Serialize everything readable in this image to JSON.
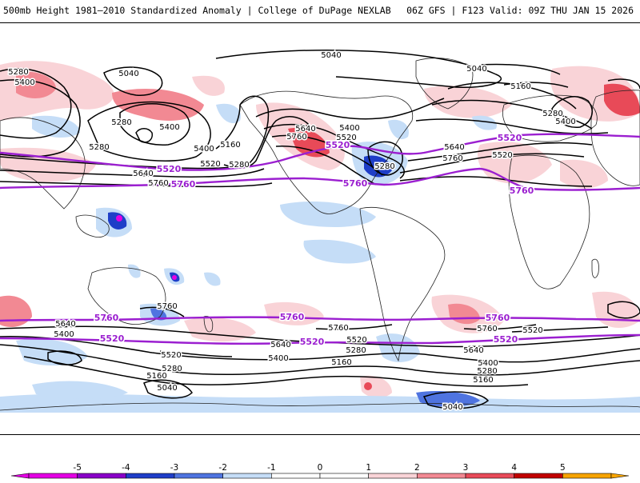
{
  "header": {
    "left_title": "500mb Height 1981–2010 Standardized Anomaly | College of DuPage NEXLAB",
    "right_title": "06Z GFS | F123 Valid: 09Z THU JAN 15 2026"
  },
  "colors": {
    "contour_black": "#000000",
    "contour_purple": "#9b1fd0",
    "neg5": "#e400e4",
    "neg4": "#8a00c8",
    "neg3": "#1f3ec8",
    "neg2": "#4f74e0",
    "neg1": "#c5ddf7",
    "pos1": "#f9d3d7",
    "pos2": "#f28993",
    "pos3": "#e84a58",
    "pos4": "#c10000",
    "pos5": "#f7a400"
  },
  "contour_labels_black": [
    "5040",
    "5160",
    "5280",
    "5400",
    "5520",
    "5640",
    "5760"
  ],
  "contour_labels_purple": [
    "5520",
    "5760"
  ],
  "colorbar": {
    "ticks": [
      "-5",
      "-4",
      "-3",
      "-2",
      "-1",
      "0",
      "1",
      "2",
      "3",
      "4",
      "5"
    ]
  },
  "map_labels": [
    {
      "text": "5280",
      "kind": "black",
      "pos": [
        23,
        89
      ]
    },
    {
      "text": "5400",
      "kind": "black",
      "pos": [
        31,
        102
      ]
    },
    {
      "text": "5040",
      "kind": "black",
      "pos": [
        161,
        91
      ]
    },
    {
      "text": "5280",
      "kind": "black",
      "pos": [
        152,
        152
      ]
    },
    {
      "text": "5400",
      "kind": "black",
      "pos": [
        212,
        158
      ]
    },
    {
      "text": "5280",
      "kind": "black",
      "pos": [
        124,
        183
      ]
    },
    {
      "text": "5400",
      "kind": "black",
      "pos": [
        255,
        185
      ]
    },
    {
      "text": "5160",
      "kind": "black",
      "pos": [
        288,
        180
      ]
    },
    {
      "text": "5520",
      "kind": "black",
      "pos": [
        263,
        204
      ]
    },
    {
      "text": "5280",
      "kind": "black",
      "pos": [
        299,
        205
      ]
    },
    {
      "text": "5640",
      "kind": "black",
      "pos": [
        179,
        216
      ]
    },
    {
      "text": "5760",
      "kind": "black",
      "pos": [
        198,
        228
      ]
    },
    {
      "text": "5040",
      "kind": "black",
      "pos": [
        414,
        68
      ]
    },
    {
      "text": "5040",
      "kind": "black",
      "pos": [
        596,
        85
      ]
    },
    {
      "text": "5160",
      "kind": "black",
      "pos": [
        651,
        107
      ]
    },
    {
      "text": "5280",
      "kind": "black",
      "pos": [
        691,
        141
      ]
    },
    {
      "text": "5400",
      "kind": "black",
      "pos": [
        707,
        151
      ]
    },
    {
      "text": "5400",
      "kind": "black",
      "pos": [
        437,
        159
      ]
    },
    {
      "text": "5520",
      "kind": "black",
      "pos": [
        433,
        171
      ]
    },
    {
      "text": "5640",
      "kind": "black",
      "pos": [
        382,
        160
      ]
    },
    {
      "text": "5760",
      "kind": "black",
      "pos": [
        371,
        170
      ]
    },
    {
      "text": "5280",
      "kind": "black",
      "pos": [
        481,
        207
      ]
    },
    {
      "text": "5640",
      "kind": "black",
      "pos": [
        568,
        183
      ]
    },
    {
      "text": "5520",
      "kind": "black",
      "pos": [
        628,
        193
      ]
    },
    {
      "text": "5760",
      "kind": "black",
      "pos": [
        566,
        197
      ]
    },
    {
      "text": "5760",
      "kind": "black",
      "pos": [
        209,
        382
      ]
    },
    {
      "text": "5640",
      "kind": "black",
      "pos": [
        82,
        404
      ]
    },
    {
      "text": "5400",
      "kind": "black",
      "pos": [
        80,
        417
      ]
    },
    {
      "text": "5520",
      "kind": "black",
      "pos": [
        214,
        443
      ]
    },
    {
      "text": "5280",
      "kind": "black",
      "pos": [
        215,
        460
      ]
    },
    {
      "text": "5160",
      "kind": "black",
      "pos": [
        196,
        469
      ]
    },
    {
      "text": "5040",
      "kind": "black",
      "pos": [
        209,
        484
      ]
    },
    {
      "text": "5760",
      "kind": "black",
      "pos": [
        423,
        409
      ]
    },
    {
      "text": "5640",
      "kind": "black",
      "pos": [
        351,
        430
      ]
    },
    {
      "text": "5400",
      "kind": "black",
      "pos": [
        348,
        447
      ]
    },
    {
      "text": "5520",
      "kind": "black",
      "pos": [
        446,
        424
      ]
    },
    {
      "text": "5280",
      "kind": "black",
      "pos": [
        445,
        437
      ]
    },
    {
      "text": "5160",
      "kind": "black",
      "pos": [
        427,
        452
      ]
    },
    {
      "text": "5760",
      "kind": "black",
      "pos": [
        609,
        410
      ]
    },
    {
      "text": "5520",
      "kind": "black",
      "pos": [
        666,
        412
      ]
    },
    {
      "text": "5640",
      "kind": "black",
      "pos": [
        592,
        437
      ]
    },
    {
      "text": "5400",
      "kind": "black",
      "pos": [
        610,
        453
      ]
    },
    {
      "text": "5280",
      "kind": "black",
      "pos": [
        609,
        463
      ]
    },
    {
      "text": "5160",
      "kind": "black",
      "pos": [
        604,
        474
      ]
    },
    {
      "text": "5040",
      "kind": "black",
      "pos": [
        566,
        508
      ]
    },
    {
      "text": "5520",
      "kind": "purple",
      "pos": [
        211,
        211
      ]
    },
    {
      "text": "5760",
      "kind": "purple",
      "pos": [
        229,
        230
      ]
    },
    {
      "text": "5520",
      "kind": "purple",
      "pos": [
        422,
        181
      ]
    },
    {
      "text": "5760",
      "kind": "purple",
      "pos": [
        444,
        229
      ]
    },
    {
      "text": "5520",
      "kind": "purple",
      "pos": [
        637,
        172
      ]
    },
    {
      "text": "5760",
      "kind": "purple",
      "pos": [
        652,
        238
      ]
    },
    {
      "text": "5760",
      "kind": "purple",
      "pos": [
        133,
        397
      ]
    },
    {
      "text": "5520",
      "kind": "purple",
      "pos": [
        140,
        423
      ]
    },
    {
      "text": "5760",
      "kind": "purple",
      "pos": [
        365,
        396
      ]
    },
    {
      "text": "5520",
      "kind": "purple",
      "pos": [
        390,
        427
      ]
    },
    {
      "text": "5760",
      "kind": "purple",
      "pos": [
        622,
        397
      ]
    },
    {
      "text": "5520",
      "kind": "purple",
      "pos": [
        632,
        424
      ]
    }
  ]
}
